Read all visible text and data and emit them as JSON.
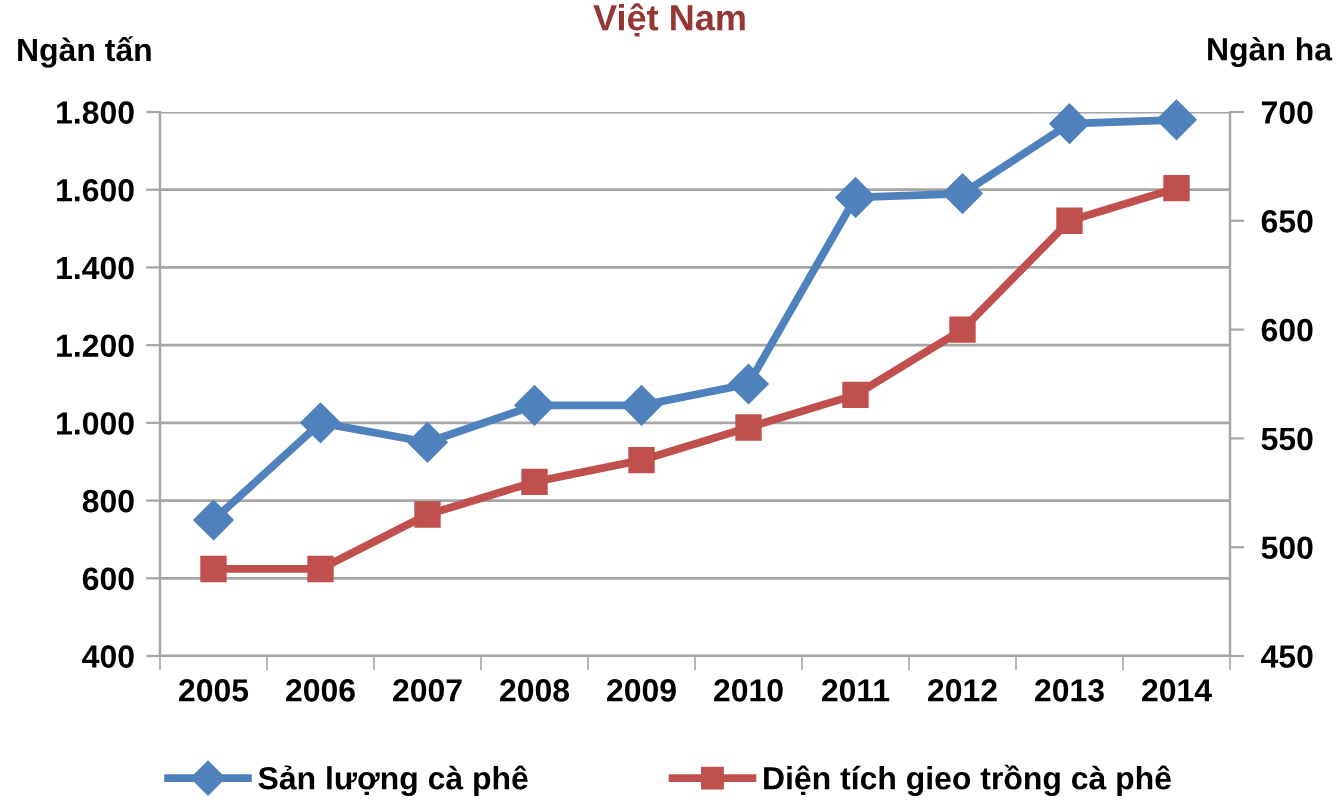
{
  "chart_data": {
    "type": "line",
    "title": "Việt Nam",
    "ylabel": "Ngàn tấn",
    "y2label": "Ngàn ha",
    "categories": [
      "2005",
      "2006",
      "2007",
      "2008",
      "2009",
      "2010",
      "2011",
      "2012",
      "2013",
      "2014"
    ],
    "series": [
      {
        "name": "Sản lượng cà phê",
        "color": "#4f81bd",
        "marker": "diamond",
        "values": [
          750,
          1000,
          950,
          1045,
          1045,
          1100,
          1580,
          1590,
          1770,
          1780
        ]
      },
      {
        "name": "Diện tích gieo trồng cà phê",
        "color": "#c0504d",
        "marker": "square",
        "axis": "y2",
        "values": [
          490,
          490,
          515,
          530,
          540,
          555,
          570,
          600,
          650,
          665
        ]
      }
    ],
    "ylim": [
      400,
      1800
    ],
    "yticks": [
      400,
      600,
      800,
      {
        "value": 1000,
        "label": "1.000"
      },
      {
        "value": 1200,
        "label": "1.200"
      },
      {
        "value": 1400,
        "label": "1.400"
      },
      {
        "value": 1600,
        "label": "1.600"
      },
      {
        "value": 1800,
        "label": "1.800"
      }
    ],
    "y2lim": [
      450,
      700
    ],
    "y2ticks": [
      450,
      500,
      550,
      600,
      650,
      700
    ],
    "grid": "y",
    "legend": "bottom",
    "line_style": "solid"
  }
}
